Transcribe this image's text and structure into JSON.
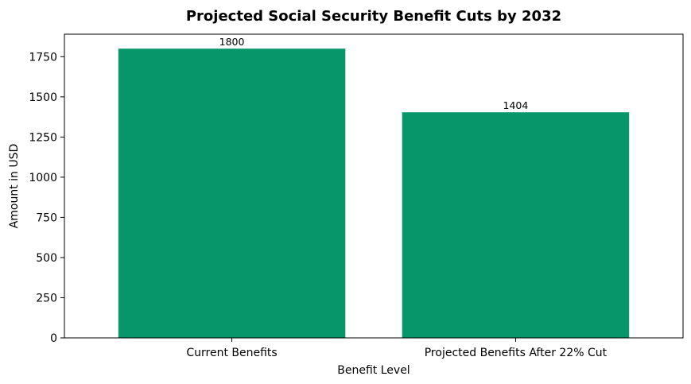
{
  "chart_data": {
    "type": "bar",
    "title": "Projected Social Security Benefit Cuts by 2032",
    "xlabel": "Benefit Level",
    "ylabel": "Amount in USD",
    "categories": [
      "Current Benefits",
      "Projected Benefits After 22% Cut"
    ],
    "values": [
      1800,
      1404
    ],
    "data_labels": [
      "1800",
      "1404"
    ],
    "ylim": [
      0,
      1890
    ],
    "yticks": [
      0,
      250,
      500,
      750,
      1000,
      1250,
      1500,
      1750
    ],
    "bar_color": "#06966a",
    "grid": false,
    "legend": "none"
  }
}
